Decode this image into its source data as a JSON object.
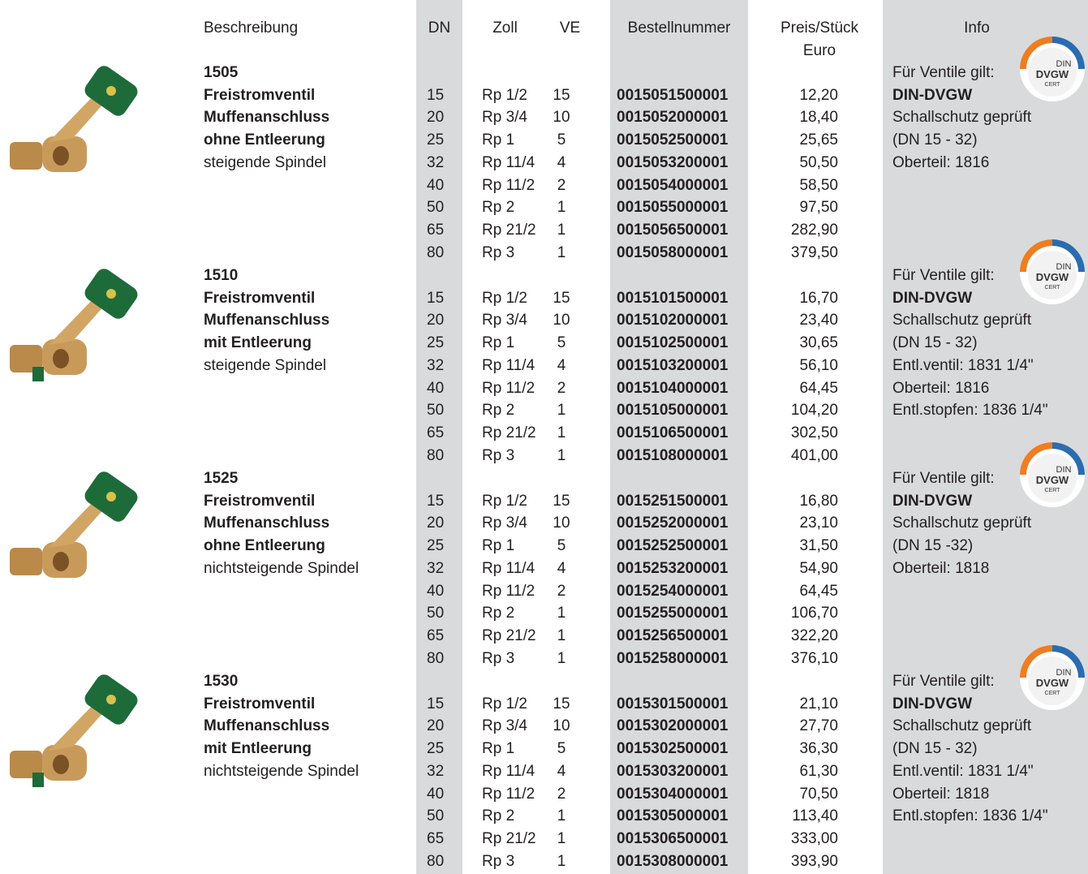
{
  "header": {
    "beschreibung": "Beschreibung",
    "dn": "DN",
    "zoll": "Zoll",
    "ve": "VE",
    "bestellnummer": "Bestellnummer",
    "preis": [
      "Preis/Stück",
      "Euro"
    ],
    "info": "Info"
  },
  "badge": {
    "top": "DIN",
    "main": "DVGW",
    "sub": "CERT"
  },
  "groups": [
    {
      "code": "1505",
      "name": [
        "Freistromventil",
        "Muffenanschluss",
        "ohne Entleerung"
      ],
      "spindle": "steigende Spindel",
      "info": [
        "Für Ventile gilt:",
        "DIN-DVGW",
        "Schallschutz geprüft",
        "(DN 15 - 32)",
        "Oberteil: 1816"
      ],
      "rows": [
        [
          15,
          "Rp 1/2",
          15,
          "0015051500001",
          "12,20"
        ],
        [
          20,
          "Rp 3/4",
          10,
          "0015052000001",
          "18,40"
        ],
        [
          25,
          "Rp 1",
          5,
          "0015052500001",
          "25,65"
        ],
        [
          32,
          "Rp 11/4",
          4,
          "0015053200001",
          "50,50"
        ],
        [
          40,
          "Rp 11/2",
          2,
          "0015054000001",
          "58,50"
        ],
        [
          50,
          "Rp 2",
          1,
          "0015055000001",
          "97,50"
        ],
        [
          65,
          "Rp 21/2",
          1,
          "0015056500001",
          "282,90"
        ],
        [
          80,
          "Rp 3",
          1,
          "0015058000001",
          "379,50"
        ]
      ]
    },
    {
      "code": "1510",
      "name": [
        "Freistromventil",
        "Muffenanschluss",
        "mit Entleerung"
      ],
      "spindle": "steigende Spindel",
      "info": [
        "Für Ventile gilt:",
        "DIN-DVGW",
        "Schallschutz geprüft",
        "(DN 15 - 32)",
        "Entl.ventil: 1831 1/4\"",
        "Oberteil: 1816",
        "Entl.stopfen: 1836 1/4\""
      ],
      "rows": [
        [
          15,
          "Rp 1/2",
          15,
          "0015101500001",
          "16,70"
        ],
        [
          20,
          "Rp 3/4",
          10,
          "0015102000001",
          "23,40"
        ],
        [
          25,
          "Rp 1",
          5,
          "0015102500001",
          "30,65"
        ],
        [
          32,
          "Rp 11/4",
          4,
          "0015103200001",
          "56,10"
        ],
        [
          40,
          "Rp 11/2",
          2,
          "0015104000001",
          "64,45"
        ],
        [
          50,
          "Rp 2",
          1,
          "0015105000001",
          "104,20"
        ],
        [
          65,
          "Rp 21/2",
          1,
          "0015106500001",
          "302,50"
        ],
        [
          80,
          "Rp 3",
          1,
          "0015108000001",
          "401,00"
        ]
      ]
    },
    {
      "code": "1525",
      "name": [
        "Freistromventil",
        "Muffenanschluss",
        "ohne Entleerung"
      ],
      "spindle": "nichtsteigende Spindel",
      "info": [
        "Für Ventile gilt:",
        "DIN-DVGW",
        "Schallschutz geprüft",
        "(DN 15 -32)",
        "Oberteil: 1818"
      ],
      "rows": [
        [
          15,
          "Rp 1/2",
          15,
          "0015251500001",
          "16,80"
        ],
        [
          20,
          "Rp 3/4",
          10,
          "0015252000001",
          "23,10"
        ],
        [
          25,
          "Rp 1",
          5,
          "0015252500001",
          "31,50"
        ],
        [
          32,
          "Rp 11/4",
          4,
          "0015253200001",
          "54,90"
        ],
        [
          40,
          "Rp 11/2",
          2,
          "0015254000001",
          "64,45"
        ],
        [
          50,
          "Rp 2",
          1,
          "0015255000001",
          "106,70"
        ],
        [
          65,
          "Rp 21/2",
          1,
          "0015256500001",
          "322,20"
        ],
        [
          80,
          "Rp 3",
          1,
          "0015258000001",
          "376,10"
        ]
      ]
    },
    {
      "code": "1530",
      "name": [
        "Freistromventil",
        "Muffenanschluss",
        "mit Entleerung"
      ],
      "spindle": "nichtsteigende Spindel",
      "info": [
        "Für Ventile gilt:",
        "DIN-DVGW",
        "Schallschutz geprüft",
        "(DN 15 - 32)",
        "Entl.ventil: 1831 1/4\"",
        "Oberteil: 1818",
        "Entl.stopfen: 1836 1/4\""
      ],
      "rows": [
        [
          15,
          "Rp 1/2",
          15,
          "0015301500001",
          "21,10"
        ],
        [
          20,
          "Rp 3/4",
          10,
          "0015302000001",
          "27,70"
        ],
        [
          25,
          "Rp 1",
          5,
          "0015302500001",
          "36,30"
        ],
        [
          32,
          "Rp 11/4",
          4,
          "0015303200001",
          "61,30"
        ],
        [
          40,
          "Rp 11/2",
          2,
          "0015304000001",
          "70,50"
        ],
        [
          50,
          "Rp 2",
          1,
          "0015305000001",
          "113,40"
        ],
        [
          65,
          "Rp 21/2",
          1,
          "0015306500001",
          "333,00"
        ],
        [
          80,
          "Rp 3",
          1,
          "0015308000001",
          "393,90"
        ]
      ]
    }
  ]
}
